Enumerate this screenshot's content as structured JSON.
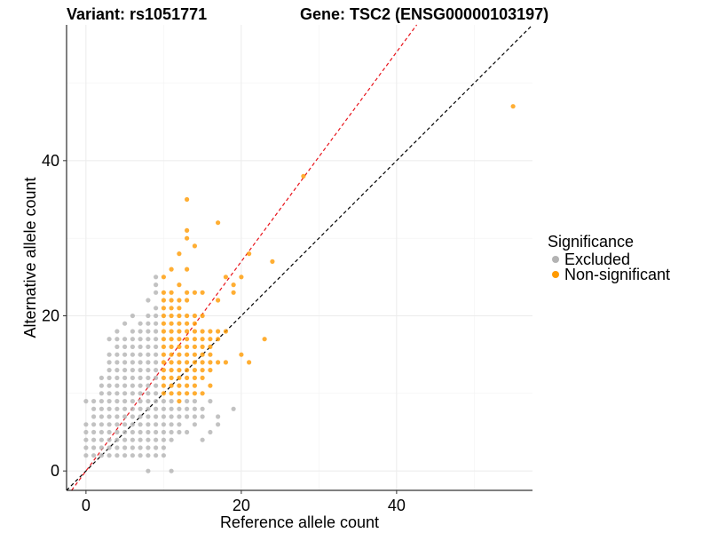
{
  "title_left": "Variant: rs1051771",
  "title_right": "Gene: TSC2 (ENSG00000103197)",
  "chart_data": {
    "type": "scatter",
    "xlabel": "Reference allele count",
    "ylabel": "Alternative allele count",
    "xlim": [
      -2.5,
      57.5
    ],
    "ylim": [
      -2.5,
      57.5
    ],
    "x_ticks": [
      0,
      20,
      40
    ],
    "y_ticks": [
      0,
      20,
      40
    ],
    "grid": true,
    "reference_lines": [
      {
        "name": "identity",
        "slope": 1,
        "intercept": 0,
        "color": "#000000",
        "style": "dashed"
      },
      {
        "name": "fit",
        "slope": 1.35,
        "intercept": 0,
        "color": "#e8121a",
        "style": "dashed"
      }
    ],
    "legend": {
      "title": "Significance",
      "position": "right",
      "items": [
        {
          "label": "Excluded",
          "color": "#b3b3b3"
        },
        {
          "label": "Non-significant",
          "color": "#ff9a00"
        }
      ]
    },
    "series": [
      {
        "name": "Excluded",
        "color": "#b3b3b3",
        "points": [
          [
            0,
            2
          ],
          [
            0,
            3
          ],
          [
            0,
            4
          ],
          [
            0,
            5
          ],
          [
            0,
            6
          ],
          [
            0,
            9
          ],
          [
            1,
            2
          ],
          [
            1,
            3
          ],
          [
            1,
            4
          ],
          [
            1,
            5
          ],
          [
            1,
            6
          ],
          [
            1,
            7
          ],
          [
            1,
            8
          ],
          [
            1,
            9
          ],
          [
            2,
            2
          ],
          [
            2,
            3
          ],
          [
            2,
            4
          ],
          [
            2,
            5
          ],
          [
            2,
            6
          ],
          [
            2,
            7
          ],
          [
            2,
            8
          ],
          [
            2,
            9
          ],
          [
            2,
            10
          ],
          [
            2,
            11
          ],
          [
            2,
            12
          ],
          [
            3,
            2
          ],
          [
            3,
            3
          ],
          [
            3,
            4
          ],
          [
            3,
            5
          ],
          [
            3,
            6
          ],
          [
            3,
            7
          ],
          [
            3,
            8
          ],
          [
            3,
            9
          ],
          [
            3,
            10
          ],
          [
            3,
            11
          ],
          [
            3,
            12
          ],
          [
            3,
            13
          ],
          [
            3,
            14
          ],
          [
            3,
            15
          ],
          [
            3,
            17
          ],
          [
            4,
            2
          ],
          [
            4,
            3
          ],
          [
            4,
            4
          ],
          [
            4,
            5
          ],
          [
            4,
            6
          ],
          [
            4,
            7
          ],
          [
            4,
            8
          ],
          [
            4,
            9
          ],
          [
            4,
            10
          ],
          [
            4,
            11
          ],
          [
            4,
            12
          ],
          [
            4,
            13
          ],
          [
            4,
            14
          ],
          [
            4,
            15
          ],
          [
            4,
            16
          ],
          [
            4,
            17
          ],
          [
            4,
            18
          ],
          [
            5,
            2
          ],
          [
            5,
            3
          ],
          [
            5,
            4
          ],
          [
            5,
            5
          ],
          [
            5,
            6
          ],
          [
            5,
            7
          ],
          [
            5,
            8
          ],
          [
            5,
            9
          ],
          [
            5,
            10
          ],
          [
            5,
            11
          ],
          [
            5,
            12
          ],
          [
            5,
            13
          ],
          [
            5,
            14
          ],
          [
            5,
            15
          ],
          [
            5,
            16
          ],
          [
            5,
            17
          ],
          [
            5,
            19
          ],
          [
            6,
            2
          ],
          [
            6,
            3
          ],
          [
            6,
            4
          ],
          [
            6,
            5
          ],
          [
            6,
            6
          ],
          [
            6,
            7
          ],
          [
            6,
            8
          ],
          [
            6,
            9
          ],
          [
            6,
            10
          ],
          [
            6,
            11
          ],
          [
            6,
            12
          ],
          [
            6,
            13
          ],
          [
            6,
            14
          ],
          [
            6,
            15
          ],
          [
            6,
            16
          ],
          [
            6,
            17
          ],
          [
            6,
            18
          ],
          [
            6,
            20
          ],
          [
            7,
            2
          ],
          [
            7,
            3
          ],
          [
            7,
            4
          ],
          [
            7,
            5
          ],
          [
            7,
            6
          ],
          [
            7,
            7
          ],
          [
            7,
            8
          ],
          [
            7,
            9
          ],
          [
            7,
            10
          ],
          [
            7,
            11
          ],
          [
            7,
            12
          ],
          [
            7,
            13
          ],
          [
            7,
            14
          ],
          [
            7,
            15
          ],
          [
            7,
            16
          ],
          [
            7,
            17
          ],
          [
            7,
            18
          ],
          [
            7,
            19
          ],
          [
            8,
            0
          ],
          [
            8,
            2
          ],
          [
            8,
            3
          ],
          [
            8,
            4
          ],
          [
            8,
            5
          ],
          [
            8,
            6
          ],
          [
            8,
            7
          ],
          [
            8,
            8
          ],
          [
            8,
            9
          ],
          [
            8,
            10
          ],
          [
            8,
            11
          ],
          [
            8,
            12
          ],
          [
            8,
            13
          ],
          [
            8,
            14
          ],
          [
            8,
            15
          ],
          [
            8,
            16
          ],
          [
            8,
            17
          ],
          [
            8,
            18
          ],
          [
            8,
            19
          ],
          [
            8,
            20
          ],
          [
            8,
            22
          ],
          [
            9,
            2
          ],
          [
            9,
            3
          ],
          [
            9,
            4
          ],
          [
            9,
            5
          ],
          [
            9,
            6
          ],
          [
            9,
            7
          ],
          [
            9,
            8
          ],
          [
            9,
            9
          ],
          [
            9,
            10
          ],
          [
            9,
            11
          ],
          [
            9,
            12
          ],
          [
            9,
            13
          ],
          [
            9,
            14
          ],
          [
            9,
            15
          ],
          [
            9,
            16
          ],
          [
            9,
            17
          ],
          [
            9,
            18
          ],
          [
            9,
            19
          ],
          [
            9,
            20
          ],
          [
            9,
            21
          ],
          [
            9,
            23
          ],
          [
            9,
            24
          ],
          [
            9,
            25
          ],
          [
            10,
            2
          ],
          [
            10,
            3
          ],
          [
            10,
            4
          ],
          [
            10,
            5
          ],
          [
            10,
            6
          ],
          [
            10,
            7
          ],
          [
            10,
            8
          ],
          [
            10,
            9
          ],
          [
            11,
            0
          ],
          [
            11,
            4
          ],
          [
            11,
            5
          ],
          [
            11,
            6
          ],
          [
            11,
            7
          ],
          [
            11,
            8
          ],
          [
            11,
            9
          ],
          [
            12,
            5
          ],
          [
            12,
            6
          ],
          [
            12,
            7
          ],
          [
            12,
            8
          ],
          [
            13,
            5
          ],
          [
            13,
            7
          ],
          [
            13,
            8
          ],
          [
            13,
            9
          ],
          [
            14,
            6
          ],
          [
            14,
            7
          ],
          [
            14,
            8
          ],
          [
            14,
            9
          ],
          [
            15,
            4
          ],
          [
            15,
            7
          ],
          [
            15,
            8
          ],
          [
            16,
            5
          ],
          [
            16,
            9
          ],
          [
            17,
            6
          ],
          [
            17,
            7
          ],
          [
            19,
            8
          ]
        ]
      },
      {
        "name": "Non-significant",
        "color": "#ff9a00",
        "points": [
          [
            10,
            10
          ],
          [
            10,
            11
          ],
          [
            10,
            12
          ],
          [
            10,
            13
          ],
          [
            10,
            14
          ],
          [
            10,
            15
          ],
          [
            10,
            16
          ],
          [
            10,
            17
          ],
          [
            10,
            18
          ],
          [
            10,
            19
          ],
          [
            10,
            20
          ],
          [
            10,
            21
          ],
          [
            10,
            22
          ],
          [
            10,
            23
          ],
          [
            10,
            25
          ],
          [
            11,
            10
          ],
          [
            11,
            11
          ],
          [
            11,
            12
          ],
          [
            11,
            13
          ],
          [
            11,
            14
          ],
          [
            11,
            15
          ],
          [
            11,
            16
          ],
          [
            11,
            17
          ],
          [
            11,
            18
          ],
          [
            11,
            19
          ],
          [
            11,
            20
          ],
          [
            11,
            21
          ],
          [
            11,
            22
          ],
          [
            11,
            23
          ],
          [
            11,
            26
          ],
          [
            12,
            9
          ],
          [
            12,
            10
          ],
          [
            12,
            11
          ],
          [
            12,
            12
          ],
          [
            12,
            13
          ],
          [
            12,
            14
          ],
          [
            12,
            15
          ],
          [
            12,
            16
          ],
          [
            12,
            17
          ],
          [
            12,
            18
          ],
          [
            12,
            19
          ],
          [
            12,
            20
          ],
          [
            12,
            21
          ],
          [
            12,
            22
          ],
          [
            12,
            24
          ],
          [
            12,
            28
          ],
          [
            13,
            10
          ],
          [
            13,
            11
          ],
          [
            13,
            12
          ],
          [
            13,
            13
          ],
          [
            13,
            14
          ],
          [
            13,
            15
          ],
          [
            13,
            16
          ],
          [
            13,
            17
          ],
          [
            13,
            18
          ],
          [
            13,
            19
          ],
          [
            13,
            20
          ],
          [
            13,
            22
          ],
          [
            13,
            23
          ],
          [
            13,
            26
          ],
          [
            13,
            30
          ],
          [
            13,
            31
          ],
          [
            13,
            35
          ],
          [
            14,
            10
          ],
          [
            14,
            11
          ],
          [
            14,
            12
          ],
          [
            14,
            13
          ],
          [
            14,
            14
          ],
          [
            14,
            15
          ],
          [
            14,
            16
          ],
          [
            14,
            17
          ],
          [
            14,
            18
          ],
          [
            14,
            19
          ],
          [
            14,
            20
          ],
          [
            14,
            23
          ],
          [
            14,
            29
          ],
          [
            15,
            10
          ],
          [
            15,
            12
          ],
          [
            15,
            13
          ],
          [
            15,
            14
          ],
          [
            15,
            15
          ],
          [
            15,
            16
          ],
          [
            15,
            17
          ],
          [
            15,
            18
          ],
          [
            15,
            20
          ],
          [
            15,
            23
          ],
          [
            16,
            11
          ],
          [
            16,
            13
          ],
          [
            16,
            14
          ],
          [
            16,
            15
          ],
          [
            16,
            16
          ],
          [
            16,
            17
          ],
          [
            16,
            18
          ],
          [
            17,
            14
          ],
          [
            17,
            17
          ],
          [
            17,
            18
          ],
          [
            17,
            22
          ],
          [
            17,
            32
          ],
          [
            18,
            14
          ],
          [
            18,
            18
          ],
          [
            18,
            25
          ],
          [
            19,
            23
          ],
          [
            19,
            24
          ],
          [
            20,
            15
          ],
          [
            20,
            25
          ],
          [
            21,
            14
          ],
          [
            21,
            28
          ],
          [
            23,
            17
          ],
          [
            24,
            27
          ],
          [
            28,
            38
          ],
          [
            55,
            47
          ]
        ]
      }
    ]
  }
}
